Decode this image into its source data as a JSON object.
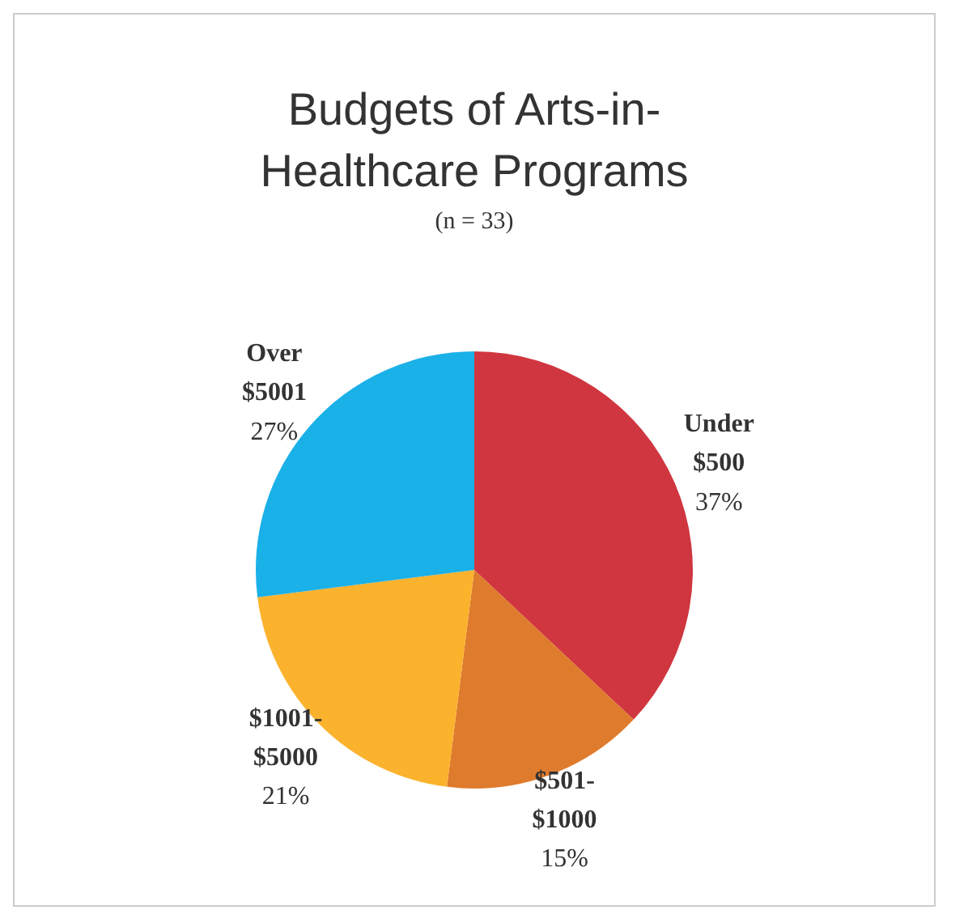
{
  "chart_data": {
    "type": "pie",
    "title": "Budgets of Arts-in-Healthcare Programs",
    "subtitle": "(n = 33)",
    "categories": [
      "Under $500",
      "$501-$1000",
      "$1001-$5000",
      "Over $5001"
    ],
    "values": [
      37,
      15,
      21,
      27
    ],
    "value_labels": [
      "37%",
      "15%",
      "21%",
      "27%"
    ],
    "colors": [
      "#d0363f",
      "#df7b2d",
      "#fbb22d",
      "#1ab0e8"
    ],
    "legend": false
  }
}
